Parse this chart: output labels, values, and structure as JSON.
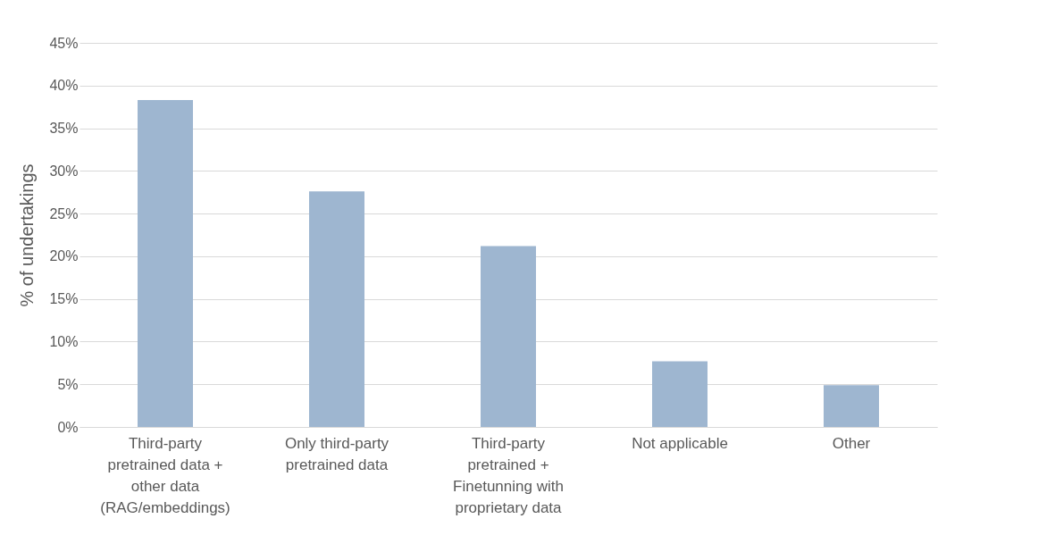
{
  "chart_data": {
    "type": "bar",
    "ylabel": "% of undertakings",
    "categories": [
      "Third-party pretrained data + other data (RAG/embeddings)",
      "Only third-party pretrained data",
      "Third-party pretrained + Finetunning with proprietary data",
      "Not applicable",
      "Other"
    ],
    "values": [
      38.3,
      27.6,
      21.2,
      7.7,
      4.9
    ],
    "color": "#9eb6d0",
    "ylim": [
      0,
      45
    ],
    "yticks": [
      {
        "value": 0,
        "label": "0%"
      },
      {
        "value": 5,
        "label": "5%"
      },
      {
        "value": 10,
        "label": "10%"
      },
      {
        "value": 15,
        "label": "15%"
      },
      {
        "value": 20,
        "label": "20%"
      },
      {
        "value": 25,
        "label": "25%"
      },
      {
        "value": 30,
        "label": "30%"
      },
      {
        "value": 35,
        "label": "35%"
      },
      {
        "value": 40,
        "label": "40%"
      },
      {
        "value": 45,
        "label": "45%"
      }
    ],
    "grid": "y"
  }
}
